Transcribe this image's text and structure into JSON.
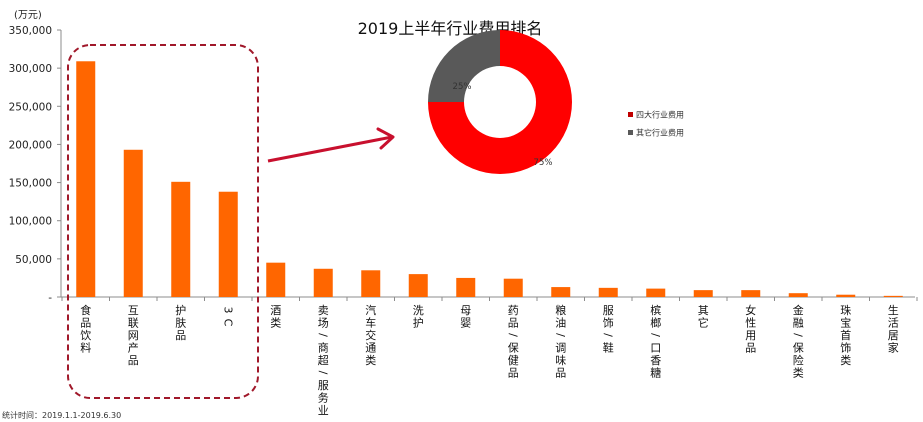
{
  "chart_data": [
    {
      "type": "bar",
      "title": "2019上半年行业费用排名",
      "xlabel": "",
      "ylabel": "(万元)",
      "ylim": [
        0,
        350000
      ],
      "yticks": [
        "-",
        "50,000",
        "100,000",
        "150,000",
        "200,000",
        "250,000",
        "300,000",
        "350,000"
      ],
      "grid": false,
      "color": "#FF6600",
      "categories": [
        "食品饮料",
        "互联网产品",
        "护肤品",
        "3C",
        "酒类",
        "卖场/商超/服务业",
        "汽车交通类",
        "洗护",
        "母婴",
        "药品/保健品",
        "粮油/调味品",
        "服饰/鞋",
        "槟榔/口香糖",
        "其它",
        "女性用品",
        "金融/保险类",
        "珠宝首饰类",
        "生活居家"
      ],
      "values": [
        309000,
        193000,
        151000,
        138000,
        45000,
        37000,
        35000,
        30000,
        25000,
        24000,
        13000,
        12000,
        11000,
        9000,
        9000,
        5000,
        3000,
        1500
      ],
      "annotations": [
        "Dashed rounded box highlighting top 4 categories",
        "Arrow pointing from box to donut chart"
      ]
    },
    {
      "type": "pie",
      "style": "donut",
      "categories": [
        "四大行业费用",
        "其它行业费用"
      ],
      "values": [
        75,
        25
      ],
      "labels": [
        "75%",
        "25%"
      ],
      "colors": [
        "#FF0000",
        "#595959"
      ],
      "legend_position": "right"
    }
  ],
  "header": {
    "title": "2019上半年行业费用排名"
  },
  "axis": {
    "unit": "(万元)",
    "ticks": [
      "-",
      "50,000",
      "100,000",
      "150,000",
      "200,000",
      "250,000",
      "300,000",
      "350,000"
    ]
  },
  "legend": {
    "items": [
      {
        "label": "四大行业费用",
        "color": "#C00000"
      },
      {
        "label": "其它行业费用",
        "color": "#595959"
      }
    ]
  },
  "donut": {
    "major_label": "75%",
    "minor_label": "25%"
  },
  "footnote": "统计时间：2019.1.1-2019.6.30",
  "colors": {
    "bar": "#FF6600",
    "highlight_box": "#A0182A",
    "arrow": "#C8102E",
    "axis": "#8C8C8C"
  }
}
